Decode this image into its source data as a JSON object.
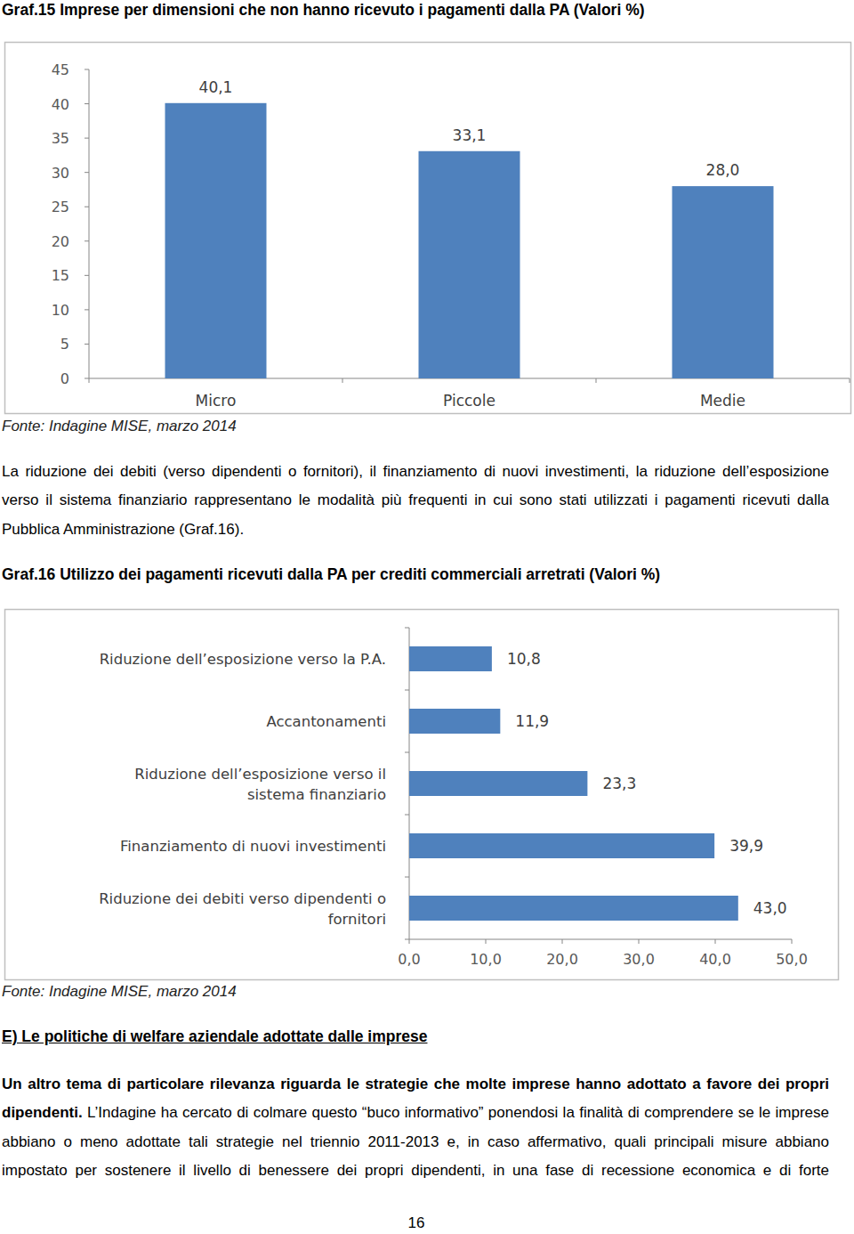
{
  "chart_data": [
    {
      "type": "bar",
      "title": "Graf.15 Imprese per dimensioni che non hanno ricevuto i pagamenti dalla PA (Valori %)",
      "source": "Fonte: Indagine MISE, marzo 2014",
      "categories": [
        "Micro",
        "Piccole",
        "Medie"
      ],
      "values": [
        40.1,
        33.1,
        28.0
      ],
      "value_labels": [
        "40,1",
        "33,1",
        "28,0"
      ],
      "color": "#4f81bd",
      "ylim": [
        0,
        45
      ],
      "yticks": [
        0,
        5,
        10,
        15,
        20,
        25,
        30,
        35,
        40,
        45
      ],
      "grid": false,
      "data_labels": true
    },
    {
      "type": "bar",
      "orientation": "horizontal",
      "title": "Graf.16 Utilizzo dei pagamenti ricevuti dalla PA per crediti commerciali arretrati (Valori %)",
      "source": "Fonte: Indagine MISE, marzo 2014",
      "categories": [
        "Riduzione dell’esposizione verso la P.A.",
        "Accantonamenti",
        "Riduzione dell’esposizione verso il\nsistema finanziario",
        "Finanziamento di nuovi investimenti",
        "Riduzione dei debiti verso dipendenti o\nfornitori"
      ],
      "values": [
        10.8,
        11.9,
        23.3,
        39.9,
        43.0
      ],
      "value_labels": [
        "10,8",
        "11,9",
        "23,3",
        "39,9",
        "43,0"
      ],
      "color": "#4f81bd",
      "xlim": [
        0,
        50
      ],
      "xticks": [
        {
          "value": 0,
          "label": "0,0"
        },
        {
          "value": 10,
          "label": "10,0"
        },
        {
          "value": 20,
          "label": "20,0"
        },
        {
          "value": 30,
          "label": "30,0"
        },
        {
          "value": 40,
          "label": "40,0"
        },
        {
          "value": 50,
          "label": "50,0"
        }
      ],
      "grid": false,
      "data_labels": true
    }
  ],
  "text_1": "La riduzione dei debiti (verso dipendenti o fornitori), il finanziamento di nuovi investimenti, la riduzione dell’esposizione verso il sistema finanziario rappresentano le modalità più frequenti in cui sono stati utilizzati i pagamenti ricevuti dalla Pubblica Amministrazione (Graf.16).",
  "section": {
    "heading": "E) Le politiche di welfare aziendale adottate dalle imprese",
    "lead": "Un altro tema di particolare rilevanza riguarda le strategie che molte imprese hanno adottato a favore dei propri dipendenti.",
    "body": " L’Indagine ha cercato di colmare questo “buco informativo” ponendosi la finalità di comprendere se le imprese abbiano o meno adottate tali strategie nel triennio 2011-2013 e, in caso affermativo, quali principali misure abbiano impostato per sostenere il livello di benessere dei propri dipendenti, in una fase di recessione economica e di forte"
  },
  "page_number": "16"
}
